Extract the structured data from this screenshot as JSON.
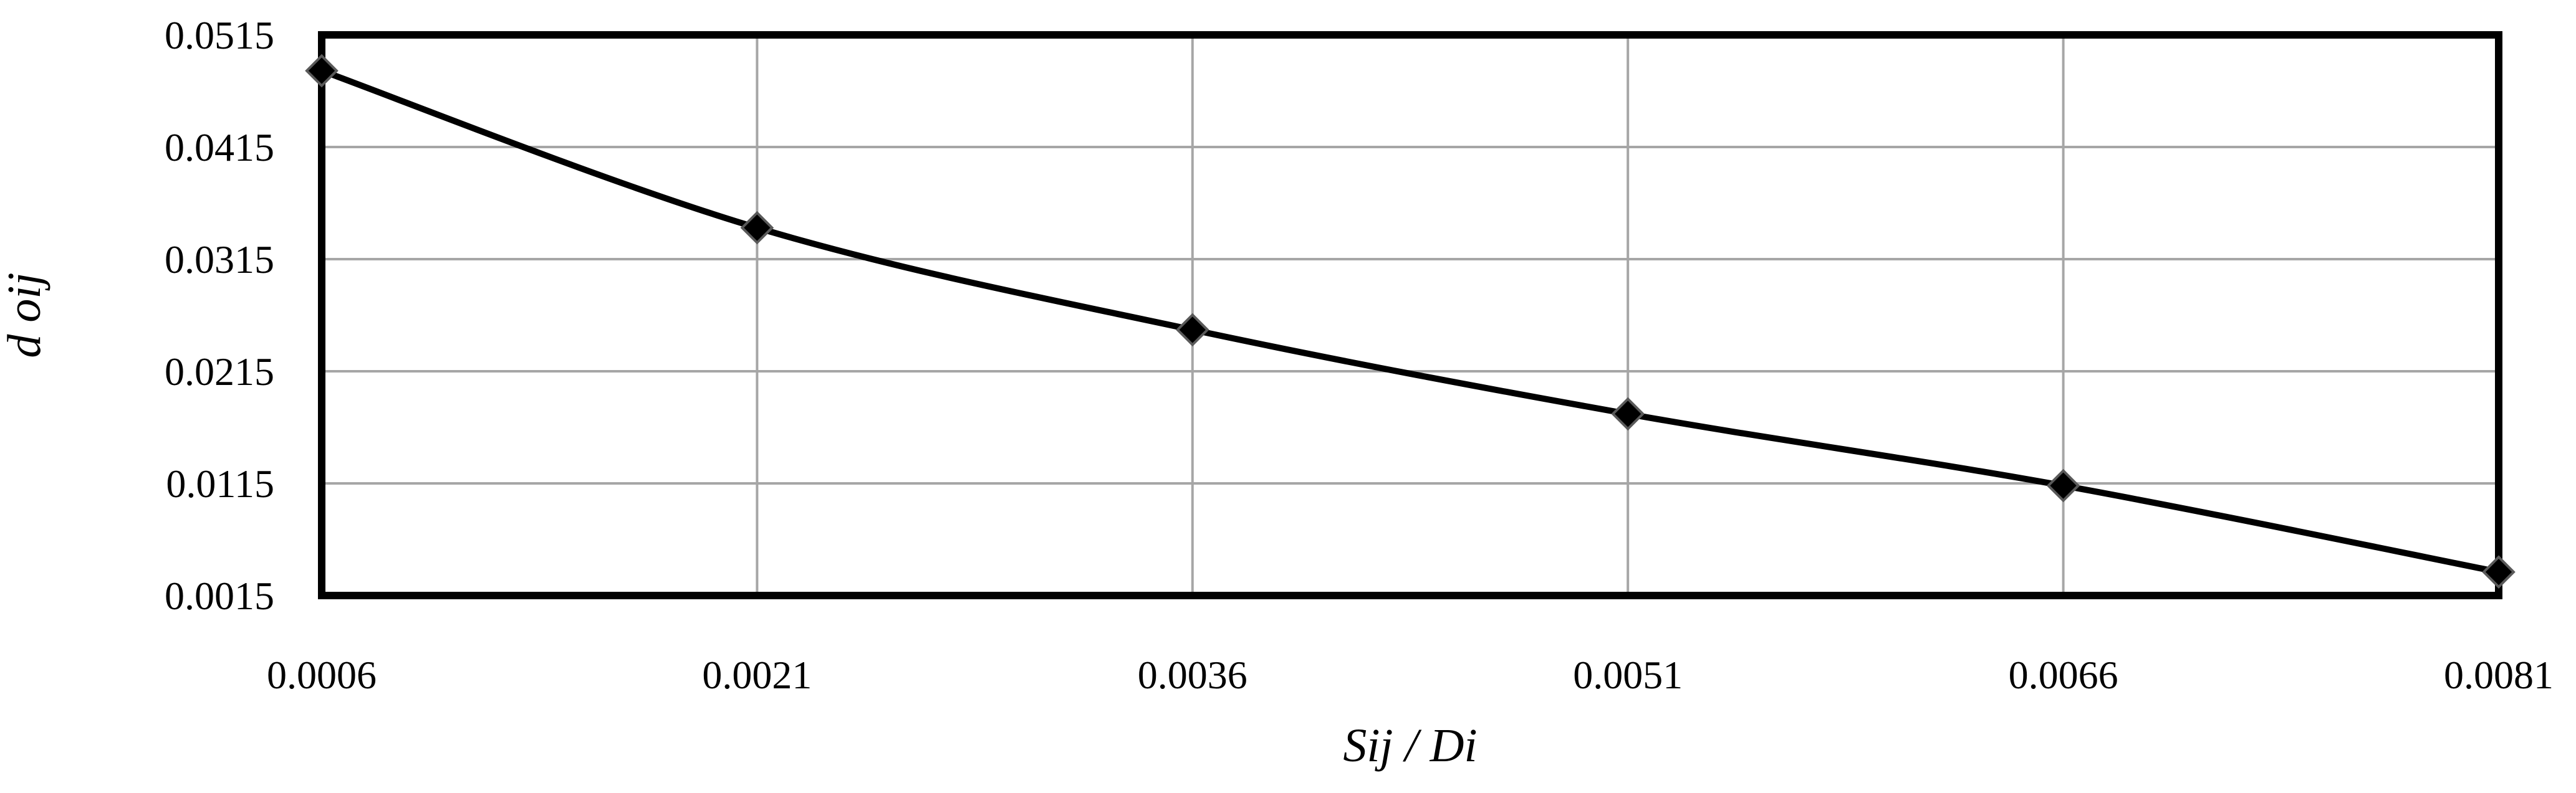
{
  "chart_data": {
    "type": "line",
    "title": "",
    "xlabel": "Sij / Di",
    "ylabel": "d oij",
    "x": [
      0.0006,
      0.0021,
      0.0036,
      0.0051,
      0.0066,
      0.0081
    ],
    "series": [
      {
        "values": [
          0.0483,
          0.0343,
          0.0252,
          0.0177,
          0.0113,
          0.0036
        ],
        "marker": "diamond",
        "line_style": "smooth"
      }
    ],
    "xlim": [
      0.0006,
      0.0081
    ],
    "ylim": [
      0.0015,
      0.0515
    ],
    "x_ticks": [
      "0.0006",
      "0.0021",
      "0.0036",
      "0.0051",
      "0.0066",
      "0.0081"
    ],
    "y_ticks": [
      "0.0015",
      "0.0115",
      "0.0215",
      "0.0315",
      "0.0415",
      "0.0515"
    ],
    "grid": true,
    "legend": "none",
    "colors": {
      "line": "#000000",
      "marker": "#000000",
      "grid": "#a6a6a6",
      "frame": "#000000"
    }
  }
}
